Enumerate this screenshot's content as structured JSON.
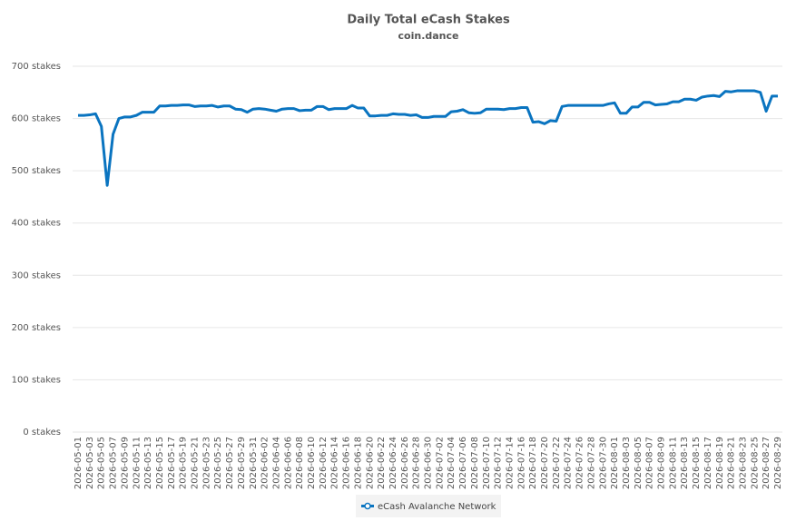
{
  "chart_data": {
    "type": "line",
    "title": "Daily Total eCash Stakes",
    "subtitle": "coin.dance",
    "x": [
      "2026-05-01",
      null,
      "2026-05-03",
      null,
      "2026-05-05",
      null,
      "2026-05-07",
      null,
      "2026-05-09",
      null,
      "2026-05-11",
      null,
      "2026-05-13",
      null,
      "2026-05-15",
      null,
      "2026-05-17",
      null,
      "2026-05-19",
      null,
      "2026-05-21",
      null,
      "2026-05-23",
      null,
      "2026-05-25",
      null,
      "2026-05-27",
      null,
      "2026-05-29",
      null,
      "2026-05-31",
      null,
      "2026-06-02",
      null,
      "2026-06-04",
      null,
      "2026-06-06",
      null,
      "2026-06-08",
      null,
      "2026-06-10",
      null,
      "2026-06-12",
      null,
      "2026-06-14",
      null,
      "2026-06-16",
      null,
      "2026-06-18",
      null,
      "2026-06-20",
      null,
      "2026-06-22",
      null,
      "2026-06-24",
      null,
      "2026-06-26",
      null,
      "2026-06-28",
      null,
      "2026-06-30",
      null,
      "2026-07-02",
      null,
      "2026-07-04",
      null,
      "2026-07-06",
      null,
      "2026-07-08",
      null,
      "2026-07-10",
      null,
      "2026-07-12",
      null,
      "2026-07-14",
      null,
      "2026-07-16",
      null,
      "2026-07-18",
      null,
      "2026-07-20",
      null,
      "2026-07-22",
      null,
      "2026-07-24",
      null,
      "2026-07-26",
      null,
      "2026-07-28",
      null,
      "2026-07-30",
      null,
      "2026-08-01",
      null,
      "2026-08-03",
      null,
      "2026-08-05",
      null,
      "2026-08-07",
      null,
      "2026-08-09",
      null,
      "2026-08-11",
      null,
      "2026-08-13",
      null,
      "2026-08-15",
      null,
      "2026-08-17",
      null,
      "2026-08-19",
      null,
      "2026-08-21",
      null,
      "2026-08-23",
      null,
      "2026-08-25",
      null,
      "2026-08-27",
      null,
      "2026-08-29"
    ],
    "series": [
      {
        "name": "eCash Avalanche Network",
        "color": "#0a74c0",
        "values": [
          606,
          606,
          607,
          609,
          585,
          472,
          570,
          600,
          603,
          603,
          606,
          612,
          612,
          612,
          624,
          624,
          625,
          625,
          626,
          626,
          623,
          624,
          624,
          625,
          622,
          624,
          624,
          618,
          617,
          612,
          618,
          619,
          618,
          616,
          614,
          618,
          619,
          619,
          615,
          616,
          616,
          623,
          623,
          617,
          619,
          619,
          619,
          625,
          620,
          620,
          605,
          605,
          606,
          606,
          609,
          608,
          608,
          606,
          607,
          602,
          602,
          604,
          604,
          604,
          613,
          614,
          617,
          611,
          610,
          611,
          618,
          618,
          618,
          617,
          619,
          619,
          621,
          621,
          593,
          594,
          590,
          596,
          595,
          623,
          625,
          625,
          625,
          625,
          625,
          625,
          625,
          628,
          630,
          610,
          610,
          622,
          622,
          631,
          631,
          626,
          627,
          628,
          632,
          632,
          637,
          637,
          635,
          641,
          643,
          644,
          642,
          652,
          651,
          653,
          653,
          653,
          653,
          650,
          614,
          643,
          643
        ]
      }
    ],
    "ylim": [
      0,
      700
    ],
    "yticks": [
      {
        "value": 0,
        "label": "0 stakes"
      },
      {
        "value": 100,
        "label": "100 stakes"
      },
      {
        "value": 200,
        "label": "200 stakes"
      },
      {
        "value": 300,
        "label": "300 stakes"
      },
      {
        "value": 400,
        "label": "400 stakes"
      },
      {
        "value": 500,
        "label": "500 stakes"
      },
      {
        "value": 600,
        "label": "600 stakes"
      },
      {
        "value": 700,
        "label": "700 stakes"
      }
    ],
    "grid": true
  }
}
